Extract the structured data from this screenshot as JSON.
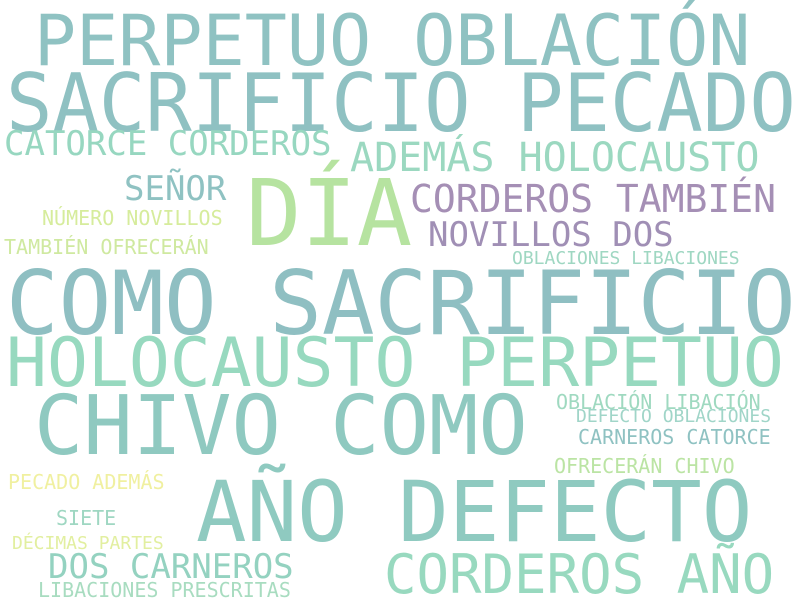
{
  "words": [
    {
      "text": "PERPETUO OBLACIÓN",
      "color": "#8fc2c2"
    },
    {
      "text": "SACRIFICIO PECADO",
      "color": "#8fc1c2"
    },
    {
      "text": "CATORCE CORDEROS",
      "color": "#97d7c0"
    },
    {
      "text": "ADEMÁS HOLOCAUSTO",
      "color": "#9bd8c0"
    },
    {
      "text": "SEÑOR",
      "color": "#8fc2c2"
    },
    {
      "text": "DÍA",
      "color": "#b6e3a0"
    },
    {
      "text": "CORDEROS TAMBIÉN",
      "color": "#a58fb5"
    },
    {
      "text": "NÚMERO NOVILLOS",
      "color": "#d6ec9c"
    },
    {
      "text": "NOVILLOS DOS",
      "color": "#a08fb5"
    },
    {
      "text": "TAMBIÉN OFRECERÁN",
      "color": "#cfe9a0"
    },
    {
      "text": "OBLACIONES LIBACIONES",
      "color": "#9fd7c2"
    },
    {
      "text": "COMO SACRIFICIO",
      "color": "#8fbfc2"
    },
    {
      "text": "HOLOCAUSTO PERPETUO",
      "color": "#97d9bf"
    },
    {
      "text": "CHIVO COMO",
      "color": "#8fc9c0"
    },
    {
      "text": "OBLACIÓN LIBACIÓN",
      "color": "#9fd9c0"
    },
    {
      "text": "DEFECTO OBLACIONES",
      "color": "#a0d5c8"
    },
    {
      "text": "CARNEROS CATORCE",
      "color": "#8fc2c2"
    },
    {
      "text": "OFRECERÁN CHIVO",
      "color": "#bbe4a4"
    },
    {
      "text": "PECADO ADEMÁS",
      "color": "#f0f0a0"
    },
    {
      "text": "AÑO DEFECTO",
      "color": "#8fcac0"
    },
    {
      "text": "SIETE",
      "color": "#9fd7c2"
    },
    {
      "text": "DÉCIMAS PARTES",
      "color": "#e2efa0"
    },
    {
      "text": "DOS CARNEROS",
      "color": "#94d2c0"
    },
    {
      "text": "CORDEROS AÑO",
      "color": "#98d9bf"
    },
    {
      "text": "LIBACIONES PRESCRITAS",
      "color": "#a8dcc0"
    }
  ]
}
